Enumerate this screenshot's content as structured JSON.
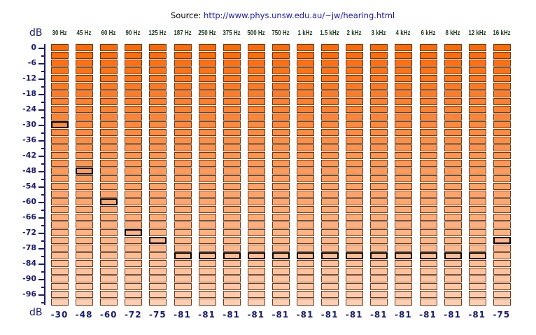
{
  "source": {
    "label": "Source:",
    "url": "http://www.phys.unsw.edu.au/~jw/hearing.html"
  },
  "unit_top": "dB",
  "unit_bottom": "dB",
  "y_axis": {
    "max": 0,
    "min": -99,
    "step": 3,
    "labels": [
      "0",
      "-6",
      "-12",
      "-18",
      "-24",
      "-30",
      "-36",
      "-42",
      "-48",
      "-54",
      "-60",
      "-66",
      "-72",
      "-78",
      "-84",
      "-90",
      "-96"
    ]
  },
  "colors": {
    "top": "#ff6a08",
    "bottom": "#ffcdb0",
    "border": "#6b3a1a",
    "selected_border": "#000000",
    "axis": "#1a1a6e"
  },
  "columns": [
    {
      "freq": "30 Hz",
      "value": "-30"
    },
    {
      "freq": "45 Hz",
      "value": "-48"
    },
    {
      "freq": "60 Hz",
      "value": "-60"
    },
    {
      "freq": "90 Hz",
      "value": "-72"
    },
    {
      "freq": "125 Hz",
      "value": "-75"
    },
    {
      "freq": "187 Hz",
      "value": "-81"
    },
    {
      "freq": "250 Hz",
      "value": "-81"
    },
    {
      "freq": "375 Hz",
      "value": "-81"
    },
    {
      "freq": "500 Hz",
      "value": "-81"
    },
    {
      "freq": "750 Hz",
      "value": "-81"
    },
    {
      "freq": "1 kHz",
      "value": "-81"
    },
    {
      "freq": "1.5 kHz",
      "value": "-81"
    },
    {
      "freq": "2 kHz",
      "value": "-81"
    },
    {
      "freq": "3 kHz",
      "value": "-81"
    },
    {
      "freq": "4 kHz",
      "value": "-81"
    },
    {
      "freq": "6 kHz",
      "value": "-81"
    },
    {
      "freq": "8 kHz",
      "value": "-81"
    },
    {
      "freq": "12 kHz",
      "value": "-81"
    },
    {
      "freq": "16 kHz",
      "value": "-75"
    }
  ]
}
